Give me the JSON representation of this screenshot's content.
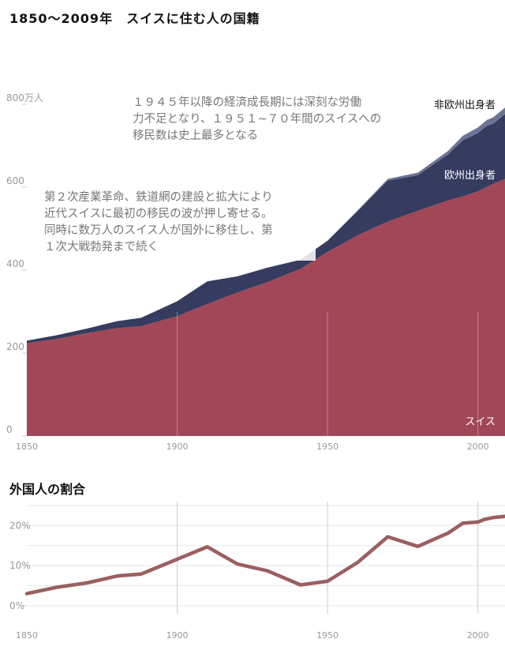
{
  "title": "1850〜2009年　スイスに住む人の国籍",
  "subtitle": "外国人の割合",
  "colors": {
    "swiss": "#A14757",
    "europe": "#353C5F",
    "noneurope": "#6E7396",
    "share_line": "#9A5F5F",
    "grid": "#e8e8e8",
    "axis_text": "#999999",
    "annotation_text": "#777777"
  },
  "chart_data": [
    {
      "type": "area",
      "stacked": true,
      "x": [
        1850,
        1860,
        1870,
        1880,
        1888,
        1900,
        1910,
        1920,
        1930,
        1941,
        1950,
        1960,
        1970,
        1980,
        1990,
        1995,
        2000,
        2003,
        2005,
        2009
      ],
      "series": [
        {
          "name": "スイス",
          "values": [
            224,
            234,
            248,
            260,
            265,
            289,
            318,
            346,
            371,
            403,
            444,
            484,
            517,
            543,
            568,
            578,
            590,
            601,
            608,
            620
          ]
        },
        {
          "name": "欧州出身者",
          "values": [
            6,
            9,
            11,
            17,
            20,
            36,
            55,
            39,
            35,
            22,
            27,
            58,
            99,
            86,
            111,
            135,
            141,
            147,
            145,
            156
          ]
        },
        {
          "name": "非欧州出身者",
          "values": [
            0,
            0,
            0,
            0,
            0,
            0,
            0,
            0,
            0,
            0,
            0,
            2,
            4,
            6,
            8,
            11,
            13,
            14,
            15,
            16
          ]
        }
      ],
      "xlim": [
        1850,
        2009
      ],
      "ylim": [
        0,
        800
      ],
      "y_ticks": [
        0,
        200,
        400,
        600,
        800
      ],
      "y_tick_labels": [
        "0",
        "200",
        "400",
        "600",
        "800万人"
      ],
      "x_ticks": [
        1850,
        1900,
        1950,
        2000
      ],
      "x_tick_labels": [
        "1850",
        "1900",
        "1950",
        "2000"
      ],
      "annotations": [
        {
          "year": 1876,
          "text": [
            "第２次産業革命、鉄道網の建設と拡大により",
            "近代スイスに最初の移民の波が押し寄せる。",
            "同時に数万人のスイス人が国外に移住し、第",
            "１次大戦勃発まで続く"
          ]
        },
        {
          "year": 1948,
          "text": [
            "１９４５年以降の経済成長期には深刻な労働",
            "力不足となり、１９５１~７０年間のスイスへの",
            "移民数は史上最多となる"
          ]
        }
      ]
    },
    {
      "type": "line",
      "x": [
        1850,
        1860,
        1870,
        1880,
        1888,
        1900,
        1910,
        1920,
        1930,
        1941,
        1950,
        1960,
        1970,
        1980,
        1990,
        1995,
        2000,
        2002,
        2005,
        2009
      ],
      "series": [
        {
          "name": "外国人の割合",
          "values": [
            3,
            4.6,
            5.7,
            7.4,
            7.9,
            11.6,
            14.7,
            10.4,
            8.7,
            5.2,
            6.1,
            10.8,
            17.2,
            14.8,
            18.1,
            20.6,
            20.9,
            21.5,
            22.0,
            22.3
          ]
        }
      ],
      "xlim": [
        1850,
        2009
      ],
      "ylim": [
        -2,
        26
      ],
      "y_ticks": [
        0,
        10,
        20
      ],
      "y_tick_labels": [
        "0%",
        "10%",
        "20%"
      ],
      "x_ticks": [
        1850,
        1900,
        1950,
        2000
      ],
      "x_tick_labels": [
        "1850",
        "1900",
        "1950",
        "2000"
      ]
    }
  ]
}
